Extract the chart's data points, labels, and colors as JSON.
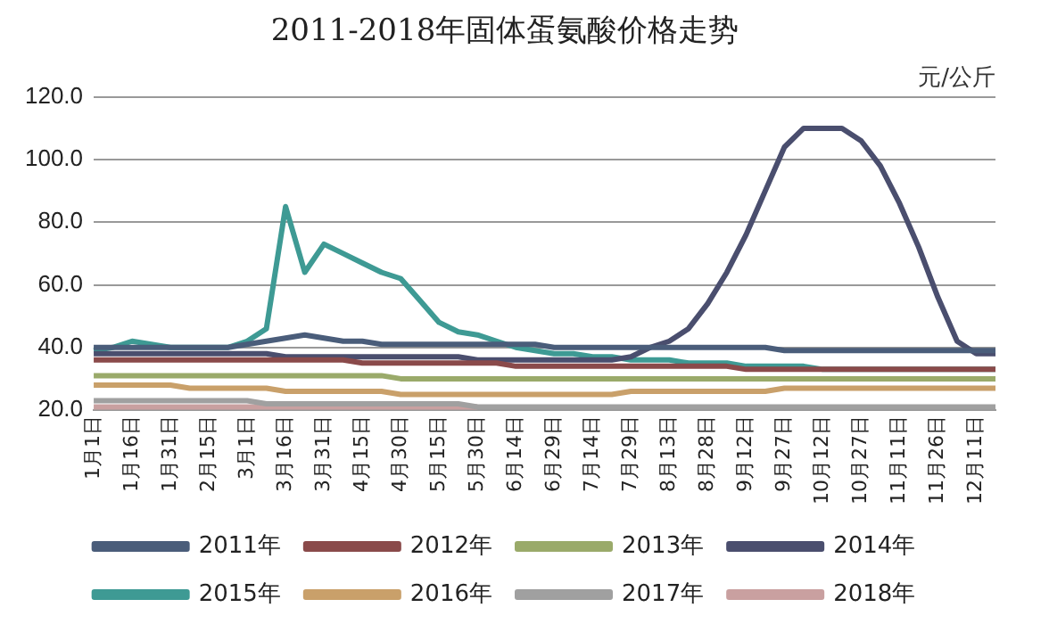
{
  "chart_data": {
    "type": "line",
    "title": "2011-2018年固体蛋氨酸价格走势",
    "ylabel": "元/公斤",
    "categories": [
      "1月1日",
      null,
      "1月16日",
      null,
      "1月31日",
      null,
      "2月15日",
      null,
      "3月1日",
      null,
      "3月16日",
      null,
      "3月31日",
      null,
      "4月15日",
      null,
      "4月30日",
      null,
      "5月15日",
      null,
      "5月30日",
      null,
      "6月14日",
      null,
      "6月29日",
      null,
      "7月14日",
      null,
      "7月29日",
      null,
      "8月13日",
      null,
      "8月28日",
      null,
      "9月12日",
      null,
      "9月27日",
      null,
      "10月12日",
      null,
      "10月27日",
      null,
      "11月11日",
      null,
      "11月26日",
      null,
      "12月11日",
      null
    ],
    "series": [
      {
        "name": "2011年",
        "color": "#4a5d7a",
        "values": [
          40,
          40,
          40,
          40,
          40,
          40,
          40,
          40,
          41,
          42,
          43,
          44,
          43,
          42,
          42,
          41,
          41,
          41,
          41,
          41,
          41,
          41,
          41,
          41,
          40,
          40,
          40,
          40,
          40,
          40,
          40,
          40,
          40,
          40,
          40,
          40,
          39,
          39,
          39,
          39,
          39,
          39,
          39,
          39,
          39,
          39,
          39,
          39
        ]
      },
      {
        "name": "2012年",
        "color": "#8a4a4a",
        "values": [
          36,
          36,
          36,
          36,
          36,
          36,
          36,
          36,
          36,
          36,
          36,
          36,
          36,
          36,
          35,
          35,
          35,
          35,
          35,
          35,
          35,
          35,
          34,
          34,
          34,
          34,
          34,
          34,
          34,
          34,
          34,
          34,
          34,
          34,
          33,
          33,
          33,
          33,
          33,
          33,
          33,
          33,
          33,
          33,
          33,
          33,
          33,
          33
        ]
      },
      {
        "name": "2013年",
        "color": "#9aaa6a",
        "values": [
          31,
          31,
          31,
          31,
          31,
          31,
          31,
          31,
          31,
          31,
          31,
          31,
          31,
          31,
          31,
          31,
          30,
          30,
          30,
          30,
          30,
          30,
          30,
          30,
          30,
          30,
          30,
          30,
          30,
          30,
          30,
          30,
          30,
          30,
          30,
          30,
          30,
          30,
          30,
          30,
          30,
          30,
          30,
          30,
          30,
          30,
          30,
          30
        ]
      },
      {
        "name": "2014年",
        "color": "#4a4e6e",
        "values": [
          38,
          38,
          38,
          38,
          38,
          38,
          38,
          38,
          38,
          38,
          37,
          37,
          37,
          37,
          37,
          37,
          37,
          37,
          37,
          37,
          36,
          36,
          36,
          36,
          36,
          36,
          36,
          36,
          37,
          40,
          42,
          46,
          54,
          64,
          76,
          90,
          104,
          110,
          110,
          110,
          106,
          98,
          86,
          72,
          56,
          42,
          38,
          38
        ]
      },
      {
        "name": "2015年",
        "color": "#3e9a94",
        "values": [
          39,
          40,
          42,
          41,
          40,
          40,
          40,
          40,
          42,
          46,
          85,
          64,
          73,
          70,
          67,
          64,
          62,
          55,
          48,
          45,
          44,
          42,
          40,
          39,
          38,
          38,
          37,
          37,
          36,
          36,
          36,
          35,
          35,
          35,
          34,
          34,
          34,
          34,
          33,
          33,
          33,
          33,
          33,
          33,
          33,
          33,
          33,
          33
        ]
      },
      {
        "name": "2016年",
        "color": "#c9a06a",
        "values": [
          28,
          28,
          28,
          28,
          28,
          27,
          27,
          27,
          27,
          27,
          26,
          26,
          26,
          26,
          26,
          26,
          25,
          25,
          25,
          25,
          25,
          25,
          25,
          25,
          25,
          25,
          25,
          25,
          26,
          26,
          26,
          26,
          26,
          26,
          26,
          26,
          27,
          27,
          27,
          27,
          27,
          27,
          27,
          27,
          27,
          27,
          27,
          27
        ]
      },
      {
        "name": "2017年",
        "color": "#a0a0a0",
        "values": [
          23,
          23,
          23,
          23,
          23,
          23,
          23,
          23,
          23,
          22,
          22,
          22,
          22,
          22,
          22,
          22,
          22,
          22,
          22,
          22,
          21,
          21,
          21,
          21,
          21,
          21,
          21,
          21,
          21,
          21,
          21,
          21,
          21,
          21,
          21,
          21,
          21,
          21,
          21,
          21,
          21,
          21,
          21,
          21,
          21,
          21,
          21,
          21
        ]
      },
      {
        "name": "2018年",
        "color": "#c9a0a0",
        "values": [
          21,
          21,
          21,
          21,
          21,
          21,
          21,
          21,
          21,
          21,
          21,
          21,
          21,
          21,
          21,
          21,
          21,
          21,
          21,
          21,
          21,
          null,
          null,
          null,
          null,
          null,
          null,
          null,
          null,
          null,
          null,
          null,
          null,
          null,
          null,
          null,
          null,
          null,
          null,
          null,
          null,
          null,
          null,
          null,
          null,
          null,
          null,
          null
        ]
      }
    ],
    "ylim": [
      20,
      120
    ],
    "yticks": [
      {
        "value": 20,
        "label": "20.0"
      },
      {
        "value": 40,
        "label": "40.0"
      },
      {
        "value": 60,
        "label": "60.0"
      },
      {
        "value": 80,
        "label": "80.0"
      },
      {
        "value": 100,
        "label": "100.0"
      },
      {
        "value": 120,
        "label": "120.0"
      }
    ],
    "grid": "y",
    "legend": "bottom",
    "marker": "none",
    "line_style": "solid"
  }
}
